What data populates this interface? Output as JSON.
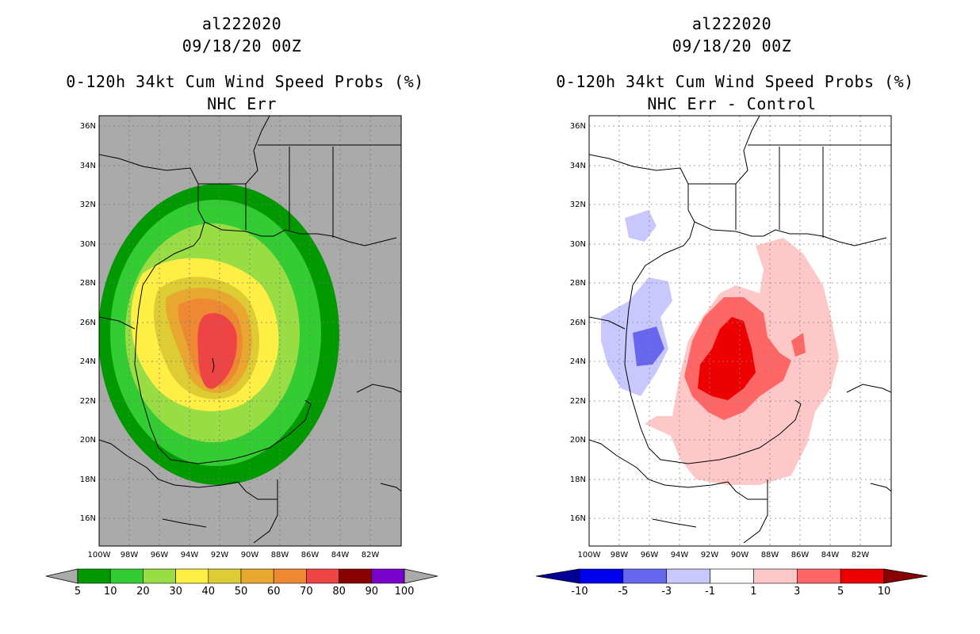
{
  "left": {
    "storm_id": "al222020",
    "datetime": "09/18/20 00Z",
    "product": "0-120h 34kt Cum Wind Speed Probs (%)",
    "subtitle": "NHC Err",
    "colorbar": {
      "labels": [
        "5",
        "10",
        "20",
        "30",
        "40",
        "50",
        "60",
        "70",
        "80",
        "90",
        "100"
      ],
      "colors": [
        "#009900",
        "#33cc33",
        "#99dd44",
        "#ffee44",
        "#ddcc33",
        "#e8a830",
        "#ee8833",
        "#ee4444",
        "#880000",
        "#7a00cc"
      ],
      "end_color": "#aaaaaa"
    }
  },
  "right": {
    "storm_id": "al222020",
    "datetime": "09/18/20 00Z",
    "product": "0-120h 34kt Cum Wind Speed Probs (%)",
    "subtitle": "NHC Err - Control",
    "colorbar": {
      "labels": [
        "-10",
        "-5",
        "-3",
        "-1",
        "1",
        "3",
        "5",
        "10"
      ],
      "colors": [
        "#0000ee",
        "#6666ee",
        "#c8c8ff",
        "#ffffff",
        "#ffc8c8",
        "#ff6666",
        "#ee0000"
      ],
      "end_low": "#000099",
      "end_high": "#880000"
    }
  },
  "axes": {
    "lat_labels": [
      "36N",
      "34N",
      "32N",
      "30N",
      "28N",
      "26N",
      "24N",
      "22N",
      "20N",
      "18N",
      "16N"
    ],
    "lon_labels": [
      "100W",
      "98W",
      "96W",
      "94W",
      "92W",
      "90W",
      "88W",
      "86W",
      "84W",
      "82W"
    ]
  }
}
